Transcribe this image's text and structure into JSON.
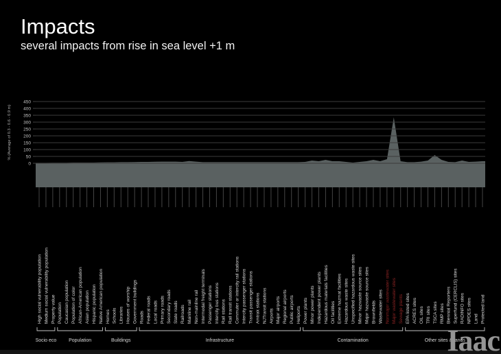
{
  "header": {
    "title": "Impacts",
    "subtitle": "several impacts from rise in sea level +1 m"
  },
  "logo": {
    "text": "Iaac"
  },
  "chart_data": {
    "type": "area",
    "title": "",
    "xlabel": "",
    "ylabel": "% (Average of 0.3 - 0.6 - 0.9 m)",
    "ylim": [
      0,
      450
    ],
    "ytick_step": 50,
    "ytick_labels": [
      "0",
      "50",
      "100",
      "150",
      "200",
      "250",
      "300",
      "350",
      "400",
      "450"
    ],
    "grid": true,
    "legend": "none",
    "categories": [
      "High social vulnerability population",
      "Medium social vulnerability population",
      "Property value",
      "Population",
      "Caucasian population",
      "Population of color",
      "African-American population",
      "Asian population",
      "Hispanic population",
      "Native American population",
      "Homes",
      "Schools",
      "Libraries",
      "Houses of worship",
      "Government buildings",
      "Roads",
      "Federal roads",
      "Local roads",
      "Primary roads",
      "Secondary roads",
      "State roads",
      "Railroads",
      "Mainline rail",
      "Non-mainline rail",
      "Intermodal freight terminals",
      "Passenger stations",
      "Intercity bus stations",
      "Rail stations",
      "Rail transit stations",
      "Commuter or intercity rail stations",
      "Intercity passenger stations",
      "Transit passenger stations",
      "Amtrak stations",
      "NJTransit stations",
      "Airports",
      "Major airports",
      "Regional airports",
      "Public airports",
      "Heliports",
      "Power plants",
      "Minor power plants",
      "Independent power plants",
      "Hazardous materials facilities",
      "Oil facilities",
      "Extreme hazmat facilities",
      "Hazardous waste sites",
      "Unspecified hazardous waste sites",
      "Minor hazwaste source sites",
      "Major hazwaste source sites",
      "Brownfields",
      "Wastewater sites",
      "Nonmajor wastewater sites",
      "Major wastewater sites",
      "Sewage plants",
      "EPA listed sites",
      "ACRES sites",
      "OIL sites",
      "TRI sites",
      "TSCA sites",
      "RMP sites",
      "Biennial Reporters",
      "Superfund (CERCLIS) sites",
      "RADINFO sites",
      "NPDES sites",
      "Land",
      "Protected land"
    ],
    "values": [
      3,
      3,
      4,
      4,
      4,
      5,
      5,
      5,
      5,
      6,
      7,
      7,
      8,
      8,
      9,
      10,
      10,
      11,
      12,
      12,
      12,
      10,
      16,
      12,
      8,
      8,
      8,
      8,
      8,
      8,
      8,
      8,
      8,
      8,
      8,
      8,
      8,
      8,
      8,
      10,
      20,
      15,
      25,
      15,
      15,
      10,
      5,
      10,
      15,
      25,
      15,
      30,
      335,
      15,
      8,
      8,
      12,
      20,
      60,
      25,
      10,
      8,
      20,
      10,
      12,
      15
    ],
    "highlight_indices": [
      51,
      52,
      53
    ],
    "highlight_categories": [
      "Nonmajor wastewater sites",
      "Major wastewater sites",
      "Sewage plants"
    ],
    "groups": [
      {
        "label": "Socio eco",
        "from": 0,
        "to": 2
      },
      {
        "label": "Population",
        "from": 3,
        "to": 9
      },
      {
        "label": "Buildings",
        "from": 10,
        "to": 14
      },
      {
        "label": "Infrastructure",
        "from": 15,
        "to": 38
      },
      {
        "label": "Contamination",
        "from": 39,
        "to": 53
      },
      {
        "label": "Other sites & lands",
        "from": 54,
        "to": 65
      }
    ],
    "colors": {
      "background": "#000000",
      "area_fill": "#5a6161",
      "grid": "#3c3c3c",
      "axis_tick": "#454545",
      "ytick_text": "#c8c8c8",
      "ylabel_text": "#aaaaaa",
      "category_text": "#d8d8d8",
      "highlight_text": "#8b2323",
      "bracket": "#c4c4c4",
      "group_text": "#d8d8d8"
    }
  }
}
